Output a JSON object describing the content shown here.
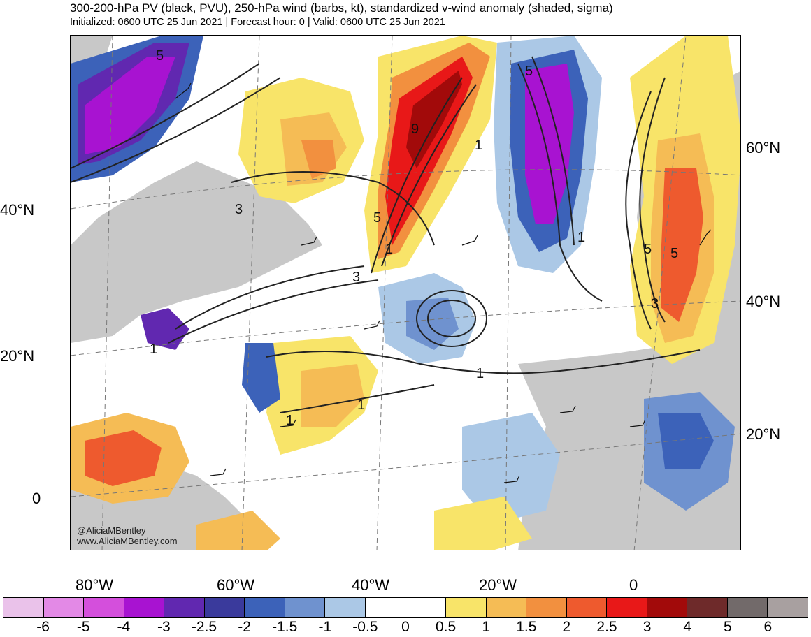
{
  "header": {
    "title": "300-200-hPa PV (black, PVU), 250-hPa wind (barbs, kt), standardized v-wind anomaly (shaded, sigma)",
    "subtitle": "Initialized: 0600 UTC 25 Jun 2021 | Forecast hour: 0 | Valid: 0600 UTC 25 Jun 2021"
  },
  "map": {
    "lat_labels_left": [
      "40°N",
      "20°N",
      "0"
    ],
    "lat_labels_right": [
      "60°N",
      "40°N",
      "20°N"
    ],
    "lon_labels": [
      "80°W",
      "60°W",
      "40°W",
      "20°W",
      "0"
    ],
    "contour_labels": [
      "5",
      "3",
      "9",
      "5",
      "1",
      "1",
      "3",
      "5",
      "1",
      "5",
      "5",
      "3",
      "1",
      "1",
      "1",
      "1"
    ],
    "credit_handle": "@AliciaMBentley",
    "credit_url": "www.AliciaMBentley.com"
  },
  "colorbar": {
    "labels": [
      "-6",
      "-5",
      "-4",
      "-3",
      "-2.5",
      "-2",
      "-1.5",
      "-1",
      "-0.5",
      "0",
      "0.5",
      "1",
      "1.5",
      "2",
      "2.5",
      "3",
      "4",
      "5",
      "6"
    ],
    "colors": [
      "#eac2ea",
      "#e389e6",
      "#d44fdc",
      "#a813d1",
      "#6128b0",
      "#3a3a9c",
      "#3c62b9",
      "#6f92cf",
      "#abc8e6",
      "#ffffff",
      "#ffffff",
      "#f8e469",
      "#f5bc55",
      "#f2903f",
      "#ee5a2e",
      "#e81818",
      "#a20a0a",
      "#6e2a2a",
      "#726a6a",
      "#a8a0a0"
    ]
  }
}
